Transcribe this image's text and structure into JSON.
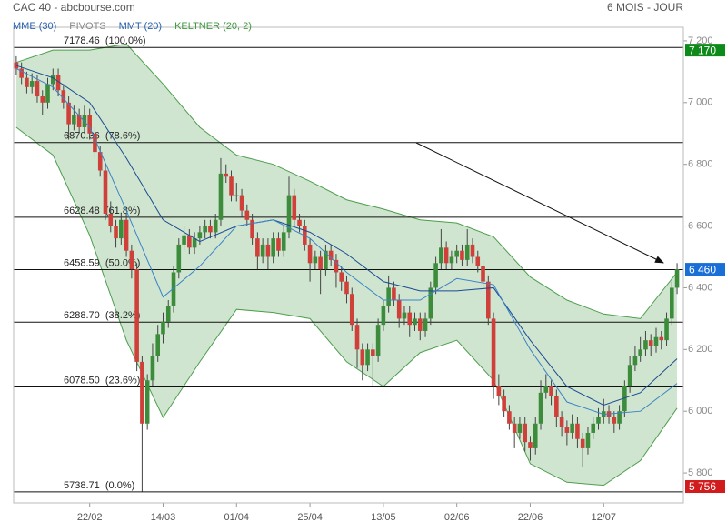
{
  "chart_data": {
    "type": "candlestick",
    "title": "CAC 40 - abcbourse.com",
    "period": "6 MOIS - JOUR",
    "legend": [
      {
        "name": "MME (30)",
        "color": "#2a62b0"
      },
      {
        "name": "PIVOTS",
        "color": "#888888"
      },
      {
        "name": "MMT (20)",
        "color": "#2a62b0"
      },
      {
        "name": "KELTNER (20, 2)",
        "color": "#3f9a3f"
      }
    ],
    "up_color": "#3c8c3c",
    "down_color": "#d0403a",
    "mme_color": "#1c4a94",
    "mmt_color": "#3c82c8",
    "keltner_color": "#4d9e4d",
    "xlim": [
      -0.5,
      127.2
    ],
    "ylim": [
      5703,
      7244
    ],
    "xticks": [
      {
        "value": 14,
        "label": "22/02"
      },
      {
        "value": 28,
        "label": "14/03"
      },
      {
        "value": 42,
        "label": "01/04"
      },
      {
        "value": 56,
        "label": "25/04"
      },
      {
        "value": 70,
        "label": "13/05"
      },
      {
        "value": 84,
        "label": "02/06"
      },
      {
        "value": 98,
        "label": "22/06"
      },
      {
        "value": 112,
        "label": "12/07"
      }
    ],
    "yticks": [
      {
        "value": 5800,
        "label": "5 800"
      },
      {
        "value": 6000,
        "label": "6 000"
      },
      {
        "value": 6200,
        "label": "6 200"
      },
      {
        "value": 6400,
        "label": "6 400"
      },
      {
        "value": 6600,
        "label": "6 600"
      },
      {
        "value": 6800,
        "label": "6 800"
      },
      {
        "value": 7000,
        "label": "7 000"
      },
      {
        "value": 7200,
        "label": "7 200"
      }
    ],
    "fib_levels": [
      {
        "value": 7178.46,
        "label": "7178.46  (100.0%)"
      },
      {
        "value": 6870.36,
        "label": "6870.36  (78.6%)"
      },
      {
        "value": 6628.48,
        "label": "6628.48  (61.8%)"
      },
      {
        "value": 6458.59,
        "label": "6458.59  (50.0%)"
      },
      {
        "value": 6288.7,
        "label": "6288.70  (38.2%)"
      },
      {
        "value": 6078.5,
        "label": "6078.50  (23.6%)"
      },
      {
        "value": 5738.71,
        "label": "5738.71  (0.0%)"
      }
    ],
    "price_tags": [
      {
        "value": 7170,
        "label": "7 170",
        "color": "#0d8a1a"
      },
      {
        "value": 6460,
        "label": "6 460",
        "color": "#1a6fd6"
      },
      {
        "value": 5756,
        "label": "5 756",
        "color": "#d01c1c"
      }
    ],
    "candles": [
      [
        7130,
        7150,
        7090,
        7110
      ],
      [
        7110,
        7130,
        7060,
        7080
      ],
      [
        7080,
        7100,
        7030,
        7050
      ],
      [
        7050,
        7095,
        7030,
        7070
      ],
      [
        7070,
        7090,
        7000,
        7020
      ],
      [
        7020,
        7040,
        6960,
        7000
      ],
      [
        7000,
        7080,
        6980,
        7060
      ],
      [
        7060,
        7110,
        7040,
        7090
      ],
      [
        7090,
        7110,
        7020,
        7040
      ],
      [
        7040,
        7060,
        6980,
        7000
      ],
      [
        7000,
        7020,
        6880,
        6930
      ],
      [
        6930,
        6990,
        6910,
        6960
      ],
      [
        6960,
        6980,
        6900,
        6920
      ],
      [
        6920,
        6990,
        6900,
        6960
      ],
      [
        6960,
        6980,
        6880,
        6900
      ],
      [
        6900,
        6920,
        6820,
        6840
      ],
      [
        6840,
        6860,
        6760,
        6780
      ],
      [
        6780,
        6800,
        6620,
        6640
      ],
      [
        6640,
        6680,
        6580,
        6600
      ],
      [
        6600,
        6620,
        6530,
        6560
      ],
      [
        6560,
        6640,
        6540,
        6620
      ],
      [
        6620,
        6640,
        6500,
        6520
      ],
      [
        6520,
        6540,
        6430,
        6460
      ],
      [
        6460,
        6480,
        6130,
        6160
      ],
      [
        6160,
        6180,
        5740,
        5960
      ],
      [
        5960,
        6120,
        5940,
        6100
      ],
      [
        6100,
        6220,
        6080,
        6180
      ],
      [
        6180,
        6280,
        6160,
        6250
      ],
      [
        6250,
        6320,
        6220,
        6290
      ],
      [
        6290,
        6360,
        6270,
        6340
      ],
      [
        6340,
        6470,
        6320,
        6450
      ],
      [
        6450,
        6560,
        6430,
        6540
      ],
      [
        6540,
        6600,
        6520,
        6570
      ],
      [
        6570,
        6590,
        6510,
        6530
      ],
      [
        6530,
        6580,
        6510,
        6560
      ],
      [
        6560,
        6600,
        6540,
        6580
      ],
      [
        6580,
        6620,
        6560,
        6600
      ],
      [
        6600,
        6620,
        6560,
        6580
      ],
      [
        6580,
        6640,
        6560,
        6620
      ],
      [
        6620,
        6820,
        6600,
        6770
      ],
      [
        6770,
        6800,
        6740,
        6760
      ],
      [
        6760,
        6780,
        6680,
        6700
      ],
      [
        6700,
        6740,
        6680,
        6700
      ],
      [
        6700,
        6720,
        6630,
        6650
      ],
      [
        6650,
        6670,
        6600,
        6620
      ],
      [
        6620,
        6640,
        6540,
        6560
      ],
      [
        6560,
        6580,
        6460,
        6500
      ],
      [
        6500,
        6560,
        6480,
        6540
      ],
      [
        6540,
        6560,
        6460,
        6500
      ],
      [
        6500,
        6580,
        6480,
        6560
      ],
      [
        6560,
        6580,
        6500,
        6520
      ],
      [
        6520,
        6600,
        6500,
        6580
      ],
      [
        6580,
        6760,
        6560,
        6700
      ],
      [
        6700,
        6720,
        6600,
        6620
      ],
      [
        6620,
        6640,
        6580,
        6600
      ],
      [
        6600,
        6620,
        6520,
        6540
      ],
      [
        6540,
        6560,
        6420,
        6480
      ],
      [
        6480,
        6520,
        6460,
        6500
      ],
      [
        6500,
        6520,
        6380,
        6460
      ],
      [
        6460,
        6540,
        6440,
        6520
      ],
      [
        6520,
        6540,
        6470,
        6490
      ],
      [
        6490,
        6510,
        6400,
        6450
      ],
      [
        6450,
        6470,
        6390,
        6420
      ],
      [
        6420,
        6440,
        6350,
        6380
      ],
      [
        6380,
        6400,
        6260,
        6280
      ],
      [
        6280,
        6300,
        6140,
        6200
      ],
      [
        6200,
        6220,
        6100,
        6150
      ],
      [
        6150,
        6220,
        6130,
        6200
      ],
      [
        6200,
        6220,
        6080,
        6180
      ],
      [
        6180,
        6300,
        6160,
        6280
      ],
      [
        6280,
        6360,
        6260,
        6340
      ],
      [
        6340,
        6440,
        6320,
        6400
      ],
      [
        6400,
        6420,
        6340,
        6360
      ],
      [
        6360,
        6380,
        6270,
        6300
      ],
      [
        6300,
        6340,
        6280,
        6320
      ],
      [
        6320,
        6340,
        6240,
        6280
      ],
      [
        6280,
        6320,
        6260,
        6300
      ],
      [
        6300,
        6320,
        6230,
        6260
      ],
      [
        6260,
        6320,
        6240,
        6300
      ],
      [
        6300,
        6420,
        6280,
        6400
      ],
      [
        6400,
        6500,
        6380,
        6480
      ],
      [
        6480,
        6590,
        6460,
        6530
      ],
      [
        6530,
        6550,
        6460,
        6480
      ],
      [
        6480,
        6520,
        6460,
        6500
      ],
      [
        6500,
        6540,
        6480,
        6520
      ],
      [
        6520,
        6540,
        6470,
        6490
      ],
      [
        6490,
        6590,
        6470,
        6540
      ],
      [
        6540,
        6560,
        6480,
        6500
      ],
      [
        6500,
        6520,
        6450,
        6470
      ],
      [
        6470,
        6490,
        6400,
        6420
      ],
      [
        6420,
        6440,
        6280,
        6300
      ],
      [
        6300,
        6320,
        6040,
        6080
      ],
      [
        6080,
        6120,
        6020,
        6050
      ],
      [
        6050,
        6070,
        5980,
        6000
      ],
      [
        6000,
        6020,
        5940,
        5960
      ],
      [
        5960,
        5980,
        5880,
        5930
      ],
      [
        5930,
        5980,
        5910,
        5960
      ],
      [
        5960,
        5980,
        5870,
        5900
      ],
      [
        5900,
        5920,
        5840,
        5880
      ],
      [
        5880,
        5980,
        5860,
        5960
      ],
      [
        5960,
        6100,
        5940,
        6060
      ],
      [
        6060,
        6120,
        6040,
        6080
      ],
      [
        6080,
        6100,
        6020,
        6050
      ],
      [
        6050,
        6070,
        5950,
        5980
      ],
      [
        5980,
        6000,
        5920,
        5950
      ],
      [
        5950,
        5970,
        5890,
        5930
      ],
      [
        5930,
        5990,
        5910,
        5960
      ],
      [
        5960,
        5980,
        5880,
        5910
      ],
      [
        5910,
        5930,
        5820,
        5880
      ],
      [
        5880,
        5950,
        5860,
        5930
      ],
      [
        5930,
        5980,
        5910,
        5960
      ],
      [
        5960,
        6010,
        5940,
        5980
      ],
      [
        5980,
        6040,
        5960,
        6000
      ],
      [
        6000,
        6020,
        5960,
        5980
      ],
      [
        5980,
        6000,
        5930,
        5960
      ],
      [
        5960,
        6020,
        5940,
        6000
      ],
      [
        6000,
        6100,
        5980,
        6080
      ],
      [
        6080,
        6180,
        6060,
        6150
      ],
      [
        6150,
        6210,
        6130,
        6180
      ],
      [
        6180,
        6240,
        6160,
        6200
      ],
      [
        6200,
        6260,
        6180,
        6230
      ],
      [
        6230,
        6250,
        6180,
        6210
      ],
      [
        6210,
        6270,
        6190,
        6240
      ],
      [
        6240,
        6260,
        6200,
        6230
      ],
      [
        6230,
        6320,
        6210,
        6300
      ],
      [
        6300,
        6420,
        6280,
        6400
      ],
      [
        6400,
        6480,
        6380,
        6460
      ]
    ],
    "overlay_x": [
      0,
      7,
      14,
      21,
      28,
      35,
      42,
      49,
      56,
      63,
      70,
      77,
      84,
      91,
      98,
      105,
      112,
      119,
      126
    ],
    "keltner_upper": [
      7130,
      7170,
      7170,
      7190,
      7060,
      6920,
      6830,
      6800,
      6745,
      6685,
      6655,
      6620,
      6610,
      6565,
      6435,
      6360,
      6315,
      6300,
      6450
    ],
    "keltner_lower": [
      6920,
      6830,
      6570,
      6230,
      5980,
      6160,
      6330,
      6320,
      6300,
      6160,
      6080,
      6190,
      6230,
      6100,
      5830,
      5770,
      5760,
      5840,
      6010
    ],
    "mme30": [
      7120,
      7080,
      7000,
      6820,
      6620,
      6550,
      6600,
      6620,
      6580,
      6510,
      6420,
      6390,
      6390,
      6400,
      6230,
      6080,
      6020,
      6060,
      6170
    ],
    "mmt20": [
      7110,
      7050,
      6920,
      6650,
      6370,
      6470,
      6600,
      6620,
      6560,
      6450,
      6360,
      6360,
      6430,
      6410,
      6200,
      6030,
      5990,
      6000,
      6090
    ]
  }
}
